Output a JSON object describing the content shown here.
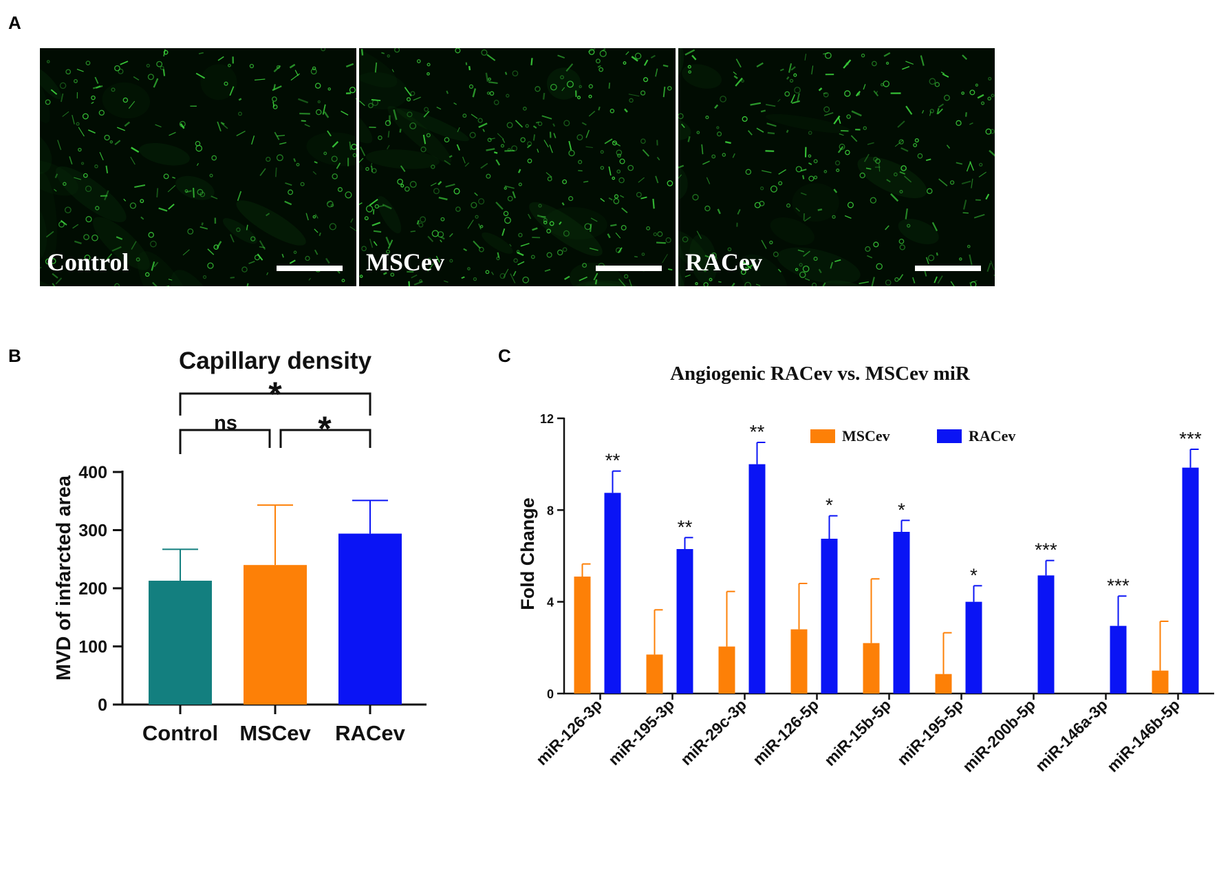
{
  "panels": {
    "a": "A",
    "b": "B",
    "c": "C"
  },
  "micrographs": [
    {
      "label": "Control",
      "density": 0.9
    },
    {
      "label": "MSCev",
      "density": 1.25
    },
    {
      "label": "RACev",
      "density": 1.0
    }
  ],
  "colors": {
    "control": "#137f7f",
    "msc": "#fd8007",
    "rac": "#0a14f5",
    "stain": "#3cd23c"
  },
  "chart_data": [
    {
      "type": "bar",
      "title": "Capillary density",
      "xlabel": "",
      "ylabel": "MVD of infarcted area",
      "ylim": [
        0,
        400
      ],
      "yticks": [
        "0",
        "100",
        "200",
        "300",
        "400"
      ],
      "categories": [
        "Control",
        "MSCev",
        "RACev"
      ],
      "values": [
        213,
        240,
        294
      ],
      "errors": [
        54,
        103,
        57
      ],
      "significance": [
        {
          "between": [
            "Control",
            "MSCev"
          ],
          "label": "ns"
        },
        {
          "between": [
            "MSCev",
            "RACev"
          ],
          "label": "*"
        },
        {
          "between": [
            "Control",
            "RACev"
          ],
          "label": "*"
        }
      ],
      "grid": false
    },
    {
      "type": "bar",
      "title": "Angiogenic RACev vs. MSCev miR",
      "xlabel": "",
      "ylabel": "Fold Change",
      "ylim": [
        0,
        12
      ],
      "yticks": [
        "0",
        "4",
        "8",
        "12"
      ],
      "categories": [
        "miR-126-3p",
        "miR-195-3p",
        "miR-29c-3p",
        "miR-126-5p",
        "miR-15b-5p",
        "miR-195-5p",
        "miR-200b-5p",
        "miR-146a-3p",
        "miR-146b-5p"
      ],
      "series": [
        {
          "name": "MSCev",
          "values": [
            5.1,
            1.7,
            2.05,
            2.8,
            2.2,
            0.85,
            0,
            0,
            1.0
          ],
          "errors": [
            0.55,
            1.95,
            2.4,
            2.0,
            2.8,
            1.8,
            0,
            0,
            2.15
          ]
        },
        {
          "name": "RACev",
          "values": [
            8.75,
            6.3,
            10.0,
            6.75,
            7.05,
            4.0,
            5.15,
            2.95,
            9.85
          ],
          "errors": [
            0.95,
            0.5,
            0.95,
            1.0,
            0.5,
            0.7,
            0.65,
            1.3,
            0.8
          ]
        }
      ],
      "significance": [
        "**",
        "**",
        "**",
        "*",
        "*",
        "*",
        "***",
        "***",
        "***"
      ],
      "legend": "top-right",
      "grid": false
    }
  ]
}
